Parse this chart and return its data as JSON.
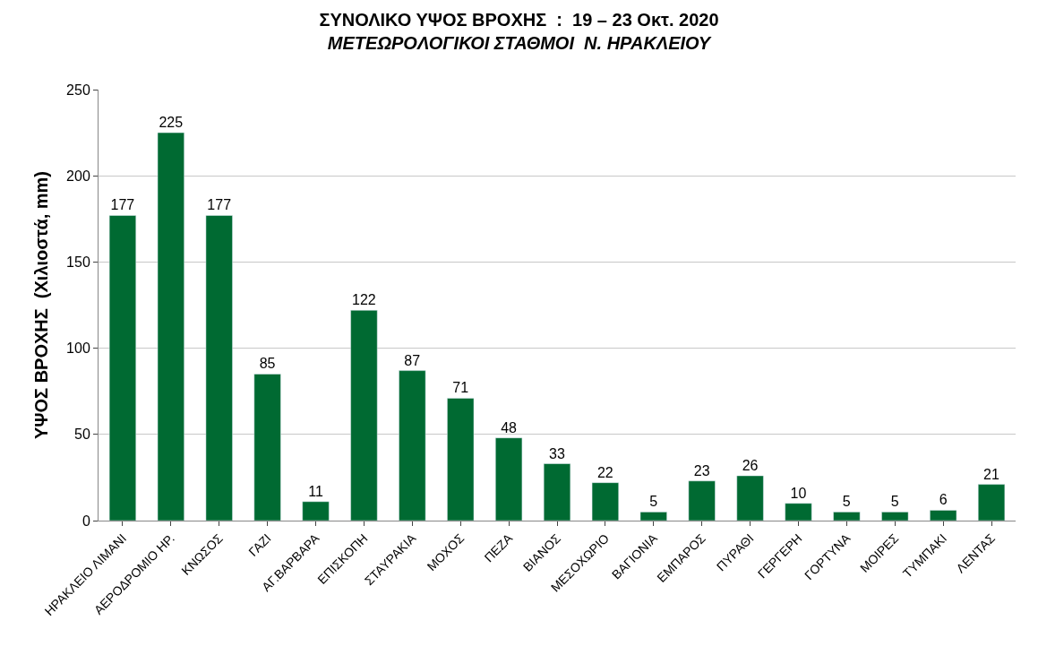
{
  "chart_data": {
    "type": "bar",
    "title": "ΣΥΝΟΛΙΚΟ ΥΨΟΣ ΒΡΟΧΗΣ  :  19 – 23 Οκτ. 2020",
    "subtitle": "ΜΕΤΕΩΡΟΛΟΓΙΚΟΙ ΣΤΑΘΜΟΙ  Ν. ΗΡΑΚΛΕΙΟΥ",
    "ylabel": "ΥΨΟΣ ΒΡΟΧΗΣ  (Χιλιοστά, mm)",
    "categories": [
      "ΗΡΑΚΛΕΙΟ ΛΙΜΑΝΙ",
      "ΑΕΡΟΔΡΟΜΙΟ ΗΡ.",
      "ΚΝΩΣΟΣ",
      "ΓΑΖΙ",
      "ΑΓ.ΒΑΡΒΑΡΑ",
      "ΕΠΙΣΚΟΠΗ",
      "ΣΤΑΥΡΑΚΙΑ",
      "ΜΟΧΟΣ",
      "ΠΕΖΑ",
      "ΒΙΑΝΟΣ",
      "ΜΕΣΟΧΩΡΙΟ",
      "ΒΑΓΙΟΝΙΑ",
      "ΕΜΠΑΡΟΣ",
      "ΠΥΡΑΘΙ",
      "ΓΕΡΓΕΡΗ",
      "ΓΟΡΤΥΝΑ",
      "ΜΟΙΡΕΣ",
      "ΤΥΜΠΑΚΙ",
      "ΛΕΝΤΑΣ"
    ],
    "values": [
      177,
      225,
      177,
      85,
      11,
      122,
      87,
      71,
      48,
      33,
      22,
      5,
      23,
      26,
      10,
      5,
      5,
      6,
      21
    ],
    "color": "#006a32",
    "ylim": [
      0,
      250
    ],
    "yticks": [
      0,
      50,
      100,
      150,
      200,
      250
    ],
    "grid": "y",
    "data_labels": true
  }
}
